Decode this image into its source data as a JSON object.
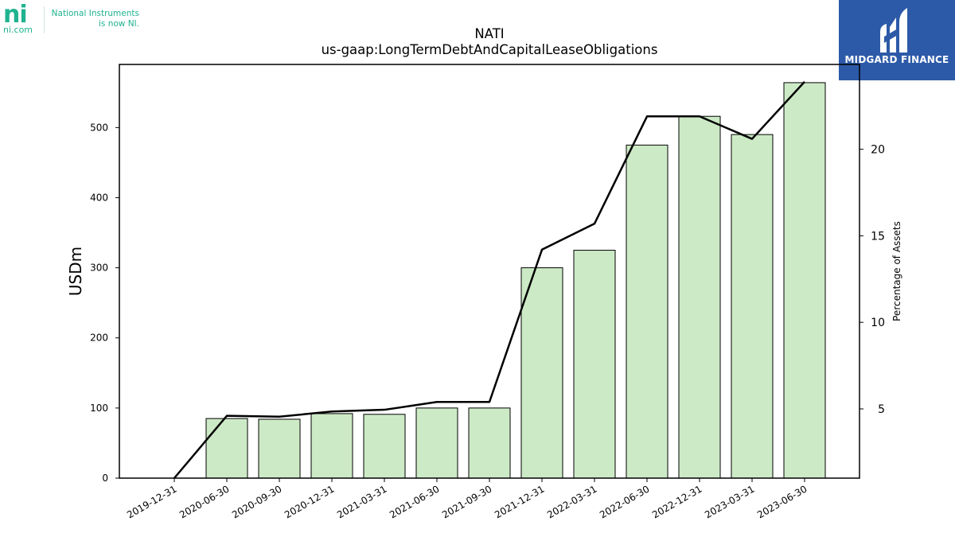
{
  "branding": {
    "left_logo": {
      "mark": "ni",
      "url": "ni.com",
      "tagline_line1": "National Instruments",
      "tagline_line2": "is now NI."
    },
    "right_logo": {
      "name": "MIDGARD FINANCE",
      "icon": "midgard-m-icon"
    }
  },
  "chart_data": {
    "type": "bar",
    "title": "NATI",
    "subtitle": "us-gaap:LongTermDebtAndCapitalLeaseObligations",
    "ylabel": "USDm",
    "y2label": "Percentage of Assets",
    "categories": [
      "2019-12-31",
      "2020-06-30",
      "2020-09-30",
      "2020-12-31",
      "2021-03-31",
      "2021-06-30",
      "2021-09-30",
      "2021-12-31",
      "2022-03-31",
      "2022-06-30",
      "2022-12-31",
      "2023-03-31",
      "2023-06-30"
    ],
    "series": [
      {
        "kind": "bar",
        "axis": "left",
        "values": [
          0,
          85,
          84,
          92,
          91,
          100,
          100,
          300,
          325,
          475,
          516,
          490,
          564
        ]
      },
      {
        "kind": "line",
        "axis": "right",
        "values": [
          1.0,
          4.6,
          4.55,
          4.85,
          4.95,
          5.4,
          5.4,
          14.2,
          15.7,
          21.9,
          21.9,
          20.6,
          23.9
        ]
      }
    ],
    "ylim": [
      0,
      590
    ],
    "y2lim": [
      1.0,
      24.9
    ],
    "yticks": [
      0,
      100,
      200,
      300,
      400,
      500
    ],
    "y2ticks": [
      5,
      10,
      15,
      20
    ],
    "grid": false,
    "colors": {
      "bar_fill": "#cdeac6",
      "bar_edge": "#000000",
      "line": "#000000"
    }
  }
}
